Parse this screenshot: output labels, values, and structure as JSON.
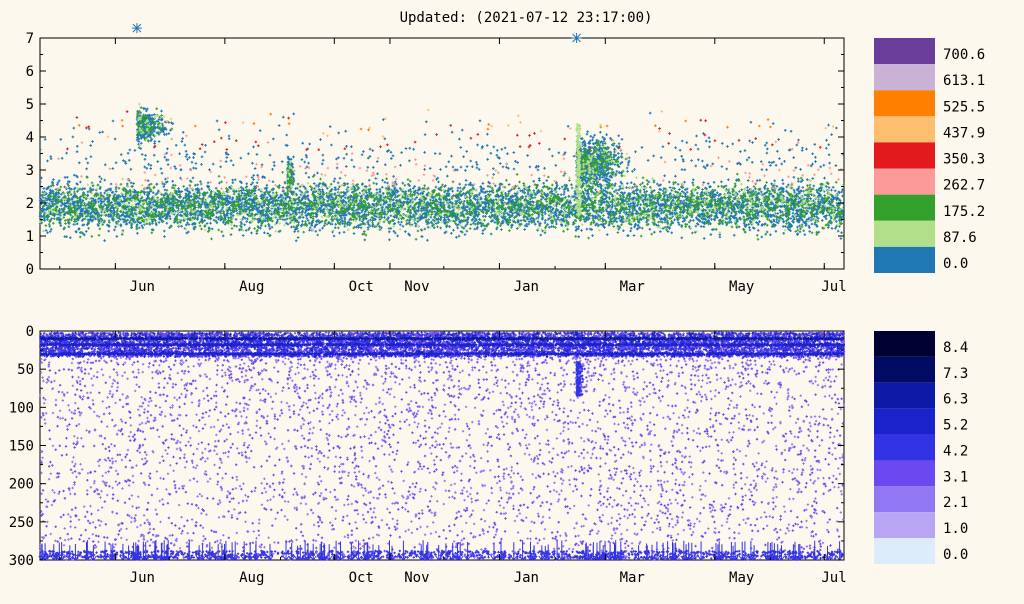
{
  "header": {
    "updated": "Updated: (2021-07-12 23:17:00)"
  },
  "chart_data": [
    {
      "id": "magnitude-time",
      "type": "scatter",
      "title": "",
      "xlabel": "",
      "ylabel": "",
      "x_tick_labels": [
        "Jun",
        "Aug",
        "Oct",
        "Nov",
        "Jan",
        "Mar",
        "May",
        "Jul"
      ],
      "x_tick_dates": [
        "2020-06-01",
        "2020-08-01",
        "2020-10-01",
        "2020-11-01",
        "2021-01-01",
        "2021-03-01",
        "2021-05-01",
        "2021-07-01"
      ],
      "x_range": [
        "2020-04-20",
        "2021-07-12"
      ],
      "y_ticks": [
        0,
        1,
        2,
        3,
        4,
        5,
        6,
        7
      ],
      "ylim": [
        0,
        7
      ],
      "point_color_by": "depth",
      "legend": {
        "placement": "right",
        "values": [
          "700.6",
          "613.1",
          "525.5",
          "437.9",
          "350.3",
          "262.7",
          "175.2",
          "87.6",
          "0.0"
        ],
        "colors": [
          "#6a3d9a",
          "#cab2d6",
          "#ff7f00",
          "#fdbf6f",
          "#e31a1c",
          "#fb9a99",
          "#33a02c",
          "#b2df8a",
          "#1f78b4"
        ]
      },
      "highlights": [
        {
          "date": "2020-06-13",
          "magnitude": 7.4
        },
        {
          "date": "2021-02-13",
          "magnitude": 7.0
        }
      ]
    },
    {
      "id": "depth-time",
      "type": "scatter",
      "title": "",
      "xlabel": "",
      "ylabel": "",
      "x_tick_labels": [
        "Jun",
        "Aug",
        "Oct",
        "Nov",
        "Jan",
        "Mar",
        "May",
        "Jul"
      ],
      "y_ticks": [
        0,
        50,
        100,
        150,
        200,
        250,
        300
      ],
      "ylim": [
        300,
        0
      ],
      "y_inverted": true,
      "point_color_by": "magnitude",
      "legend": {
        "placement": "right",
        "values": [
          "8.4",
          "7.3",
          "6.3",
          "5.2",
          "4.2",
          "3.1",
          "2.1",
          "1.0",
          "0.0"
        ],
        "colors": [
          "#000033",
          "#000b66",
          "#0c1aa6",
          "#1a22cc",
          "#3333e6",
          "#6a4af0",
          "#9178f2",
          "#b8a6f5",
          "#dcecfa"
        ]
      }
    }
  ]
}
